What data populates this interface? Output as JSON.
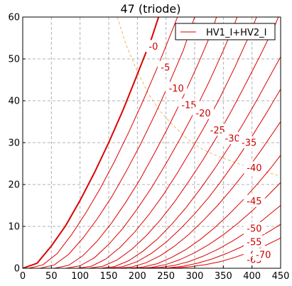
{
  "chart_data": {
    "type": "line",
    "title": "47 (triode)",
    "xlabel": "",
    "ylabel": "",
    "xlim": [
      0,
      450
    ],
    "ylim": [
      0,
      60
    ],
    "x_ticks": [
      "0",
      "50",
      "100",
      "150",
      "200",
      "250",
      "300",
      "350",
      "400",
      "450"
    ],
    "y_ticks": [
      "0",
      "10",
      "20",
      "30",
      "40",
      "50",
      "60"
    ],
    "grid": true,
    "legend": {
      "placement": "top-right",
      "entries": [
        "HV1_I+HV2_I"
      ]
    },
    "colors": {
      "curve": "#dd0000",
      "dissipation": "#f5b36b",
      "grid": "#b0b0b0"
    },
    "series": [
      {
        "grid_voltage": 0,
        "label": "-0",
        "points": [
          [
            0,
            0
          ],
          [
            25,
            1.2
          ],
          [
            50,
            5.3
          ],
          [
            75,
            10.2
          ],
          [
            100,
            16.2
          ],
          [
            125,
            22.8
          ],
          [
            150,
            30.0
          ],
          [
            175,
            37.8
          ],
          [
            200,
            46.3
          ],
          [
            225,
            55.0
          ],
          [
            237,
            60.0
          ]
        ]
      },
      {
        "grid_voltage": -5,
        "label": "-5",
        "points": [
          [
            10,
            0
          ],
          [
            35,
            0.8
          ],
          [
            60,
            3.5
          ],
          [
            85,
            8.0
          ],
          [
            110,
            13.2
          ],
          [
            135,
            19.0
          ],
          [
            160,
            25.5
          ],
          [
            185,
            32.5
          ],
          [
            210,
            40.0
          ],
          [
            235,
            48.0
          ],
          [
            260,
            56.5
          ],
          [
            270,
            60.0
          ]
        ]
      },
      {
        "grid_voltage": -10,
        "label": "-10",
        "points": [
          [
            30,
            0
          ],
          [
            55,
            0.8
          ],
          [
            80,
            3.3
          ],
          [
            105,
            7.2
          ],
          [
            130,
            11.8
          ],
          [
            155,
            17.0
          ],
          [
            180,
            23.0
          ],
          [
            205,
            29.5
          ],
          [
            230,
            36.5
          ],
          [
            255,
            44.0
          ],
          [
            280,
            52.0
          ],
          [
            300,
            60.0
          ]
        ]
      },
      {
        "grid_voltage": -15,
        "label": "-15",
        "points": [
          [
            55,
            0
          ],
          [
            80,
            0.7
          ],
          [
            105,
            3.0
          ],
          [
            130,
            6.5
          ],
          [
            155,
            10.8
          ],
          [
            180,
            15.8
          ],
          [
            205,
            21.3
          ],
          [
            230,
            27.5
          ],
          [
            255,
            34.0
          ],
          [
            280,
            41.0
          ],
          [
            305,
            48.5
          ],
          [
            330,
            56.5
          ],
          [
            338,
            60.0
          ]
        ]
      },
      {
        "grid_voltage": -20,
        "label": "-20",
        "points": [
          [
            75,
            0
          ],
          [
            100,
            0.6
          ],
          [
            125,
            2.5
          ],
          [
            150,
            5.7
          ],
          [
            175,
            9.6
          ],
          [
            200,
            14.2
          ],
          [
            225,
            19.3
          ],
          [
            250,
            25.0
          ],
          [
            275,
            31.0
          ],
          [
            300,
            37.5
          ],
          [
            325,
            44.5
          ],
          [
            350,
            52.0
          ],
          [
            370,
            58.5
          ],
          [
            374,
            60.0
          ]
        ]
      },
      {
        "grid_voltage": -25,
        "label": "-25",
        "points": [
          [
            95,
            0
          ],
          [
            120,
            0.5
          ],
          [
            145,
            2.2
          ],
          [
            170,
            5.0
          ],
          [
            195,
            8.6
          ],
          [
            220,
            12.8
          ],
          [
            245,
            17.5
          ],
          [
            270,
            22.8
          ],
          [
            295,
            28.5
          ],
          [
            320,
            34.5
          ],
          [
            345,
            41.0
          ],
          [
            370,
            48.0
          ],
          [
            395,
            55.5
          ],
          [
            408,
            60.0
          ]
        ]
      },
      {
        "grid_voltage": -30,
        "label": "-30",
        "points": [
          [
            115,
            0
          ],
          [
            140,
            0.5
          ],
          [
            165,
            2.0
          ],
          [
            190,
            4.5
          ],
          [
            215,
            7.7
          ],
          [
            240,
            11.5
          ],
          [
            265,
            15.9
          ],
          [
            290,
            20.8
          ],
          [
            315,
            26.0
          ],
          [
            340,
            31.7
          ],
          [
            365,
            37.8
          ],
          [
            390,
            44.3
          ],
          [
            415,
            51.0
          ],
          [
            440,
            58.0
          ],
          [
            446,
            60.0
          ]
        ]
      },
      {
        "grid_voltage": -35,
        "label": "-35",
        "points": [
          [
            135,
            0
          ],
          [
            160,
            0.4
          ],
          [
            185,
            1.8
          ],
          [
            210,
            4.1
          ],
          [
            235,
            7.0
          ],
          [
            260,
            10.5
          ],
          [
            285,
            14.5
          ],
          [
            310,
            19.0
          ],
          [
            335,
            23.8
          ],
          [
            360,
            29.0
          ],
          [
            385,
            34.6
          ],
          [
            410,
            40.5
          ],
          [
            435,
            46.8
          ],
          [
            450,
            50.5
          ]
        ]
      },
      {
        "grid_voltage": -40,
        "label": "-40",
        "points": [
          [
            150,
            0
          ],
          [
            175,
            0.4
          ],
          [
            200,
            1.6
          ],
          [
            225,
            3.6
          ],
          [
            250,
            6.2
          ],
          [
            275,
            9.4
          ],
          [
            300,
            13.0
          ],
          [
            325,
            17.0
          ],
          [
            350,
            21.5
          ],
          [
            375,
            26.3
          ],
          [
            400,
            31.5
          ],
          [
            425,
            37.0
          ],
          [
            450,
            42.8
          ]
        ]
      },
      {
        "grid_voltage": -45,
        "label": "-45",
        "points": [
          [
            165,
            0
          ],
          [
            190,
            0.3
          ],
          [
            215,
            1.3
          ],
          [
            240,
            3.0
          ],
          [
            265,
            5.3
          ],
          [
            290,
            8.1
          ],
          [
            315,
            11.4
          ],
          [
            340,
            15.0
          ],
          [
            365,
            19.0
          ],
          [
            390,
            23.3
          ],
          [
            415,
            28.0
          ],
          [
            440,
            33.0
          ],
          [
            450,
            35.0
          ]
        ]
      },
      {
        "grid_voltage": -50,
        "label": "-50",
        "points": [
          [
            185,
            0
          ],
          [
            210,
            0.3
          ],
          [
            235,
            1.1
          ],
          [
            260,
            2.6
          ],
          [
            285,
            4.5
          ],
          [
            310,
            6.9
          ],
          [
            335,
            9.7
          ],
          [
            360,
            12.9
          ],
          [
            385,
            16.4
          ],
          [
            410,
            20.2
          ],
          [
            435,
            24.3
          ],
          [
            450,
            27.0
          ]
        ]
      },
      {
        "grid_voltage": -55,
        "label": "-55",
        "points": [
          [
            200,
            0
          ],
          [
            225,
            0.2
          ],
          [
            250,
            0.9
          ],
          [
            275,
            2.1
          ],
          [
            300,
            3.7
          ],
          [
            325,
            5.7
          ],
          [
            350,
            8.0
          ],
          [
            375,
            10.7
          ],
          [
            400,
            13.7
          ],
          [
            425,
            17.0
          ],
          [
            450,
            20.5
          ]
        ]
      },
      {
        "grid_voltage": -60,
        "label": "-60",
        "points": [
          [
            215,
            0
          ],
          [
            240,
            0.2
          ],
          [
            265,
            0.7
          ],
          [
            290,
            1.6
          ],
          [
            315,
            2.9
          ],
          [
            340,
            4.5
          ],
          [
            365,
            6.4
          ],
          [
            390,
            8.6
          ],
          [
            415,
            11.1
          ],
          [
            440,
            13.9
          ],
          [
            450,
            15.0
          ]
        ]
      },
      {
        "grid_voltage": -65,
        "label": "-65",
        "points": [
          [
            230,
            0
          ],
          [
            255,
            0.1
          ],
          [
            280,
            0.5
          ],
          [
            305,
            1.2
          ],
          [
            330,
            2.2
          ],
          [
            355,
            3.5
          ],
          [
            380,
            5.0
          ],
          [
            405,
            6.8
          ],
          [
            430,
            8.8
          ],
          [
            450,
            10.5
          ]
        ]
      },
      {
        "grid_voltage": -70,
        "label": "-70",
        "points": [
          [
            245,
            0
          ],
          [
            270,
            0.1
          ],
          [
            295,
            0.4
          ],
          [
            320,
            0.9
          ],
          [
            345,
            1.6
          ],
          [
            370,
            2.6
          ],
          [
            395,
            3.8
          ],
          [
            420,
            5.2
          ],
          [
            450,
            7.2
          ]
        ]
      }
    ],
    "dissipation_curve": {
      "points": [
        [
          165,
          60
        ],
        [
          180,
          53.5
        ],
        [
          200,
          47
        ],
        [
          220,
          41.5
        ],
        [
          240,
          37.5
        ],
        [
          260,
          34.5
        ],
        [
          280,
          31.8
        ],
        [
          300,
          29.5
        ],
        [
          320,
          28.0
        ],
        [
          340,
          26.8
        ],
        [
          360,
          25.8
        ],
        [
          380,
          24.8
        ],
        [
          400,
          24.0
        ],
        [
          430,
          22.8
        ],
        [
          450,
          22.0
        ]
      ]
    },
    "label_positions": [
      {
        "label": "-0",
        "x": 228,
        "y": 53
      },
      {
        "label": "-5",
        "x": 249,
        "y": 48
      },
      {
        "label": "-10",
        "x": 268,
        "y": 43
      },
      {
        "label": "-15",
        "x": 290,
        "y": 39
      },
      {
        "label": "-20",
        "x": 315,
        "y": 37
      },
      {
        "label": "-25",
        "x": 340,
        "y": 33
      },
      {
        "label": "-30",
        "x": 366,
        "y": 31
      },
      {
        "label": "-35",
        "x": 395,
        "y": 30
      },
      {
        "label": "-40",
        "x": 404,
        "y": 24
      },
      {
        "label": "-45",
        "x": 404,
        "y": 16
      },
      {
        "label": "-50",
        "x": 404,
        "y": 9.5
      },
      {
        "label": "-55",
        "x": 404,
        "y": 6.3
      },
      {
        "label": "-60",
        "x": 404,
        "y": 3.3
      },
      {
        "label": "-65",
        "x": 404,
        "y": 2.0
      },
      {
        "label": "-70",
        "x": 420,
        "y": 3.2
      }
    ]
  }
}
